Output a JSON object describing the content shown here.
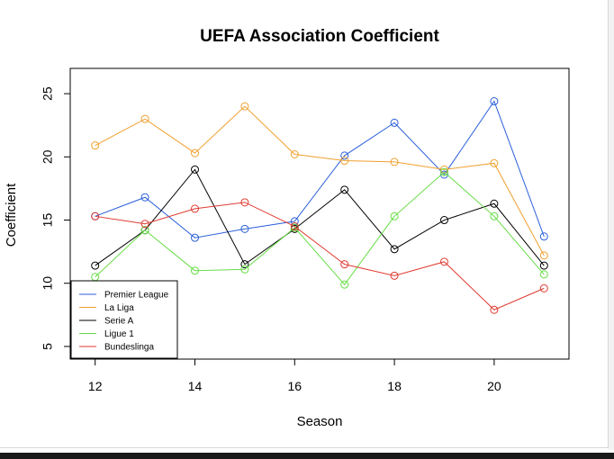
{
  "chart_data": {
    "type": "line",
    "title": "UEFA Association Coefficient",
    "xlabel": "Season",
    "ylabel": "Coefficient",
    "x": [
      12,
      13,
      14,
      15,
      16,
      17,
      18,
      19,
      20,
      21
    ],
    "xlim": [
      11.5,
      21.5
    ],
    "ylim": [
      4,
      27
    ],
    "xticks": [
      "12",
      "14",
      "16",
      "18",
      "20"
    ],
    "xtick_values": [
      12,
      14,
      16,
      18,
      20
    ],
    "yticks": [
      "5",
      "10",
      "15",
      "20",
      "25"
    ],
    "ytick_values": [
      5,
      10,
      15,
      20,
      25
    ],
    "markers": "open-circle",
    "grid": false,
    "legend_position": "bottom-left",
    "series": [
      {
        "name": "Premier League",
        "color": "#2b5fd9",
        "values": [
          15.3,
          16.8,
          13.6,
          14.3,
          14.9,
          20.1,
          22.7,
          18.6,
          24.4,
          13.7
        ]
      },
      {
        "name": "La Liga",
        "color": "#f0a030",
        "values": [
          20.9,
          23.0,
          20.3,
          24.0,
          20.2,
          19.7,
          19.6,
          19.0,
          19.5,
          12.2
        ]
      },
      {
        "name": "Serie A",
        "color": "#000000",
        "values": [
          11.4,
          14.2,
          19.0,
          11.5,
          14.3,
          17.4,
          12.7,
          15.0,
          16.3,
          11.4
        ]
      },
      {
        "name": "Ligue 1",
        "color": "#66dd44",
        "values": [
          10.5,
          14.2,
          11.0,
          11.1,
          14.4,
          9.9,
          15.3,
          18.8,
          15.3,
          10.7
        ]
      },
      {
        "name": "Bundeslinga",
        "color": "#e03a30",
        "values": [
          15.3,
          14.7,
          15.9,
          16.4,
          14.5,
          11.5,
          10.6,
          11.7,
          7.9,
          9.6
        ]
      }
    ]
  }
}
